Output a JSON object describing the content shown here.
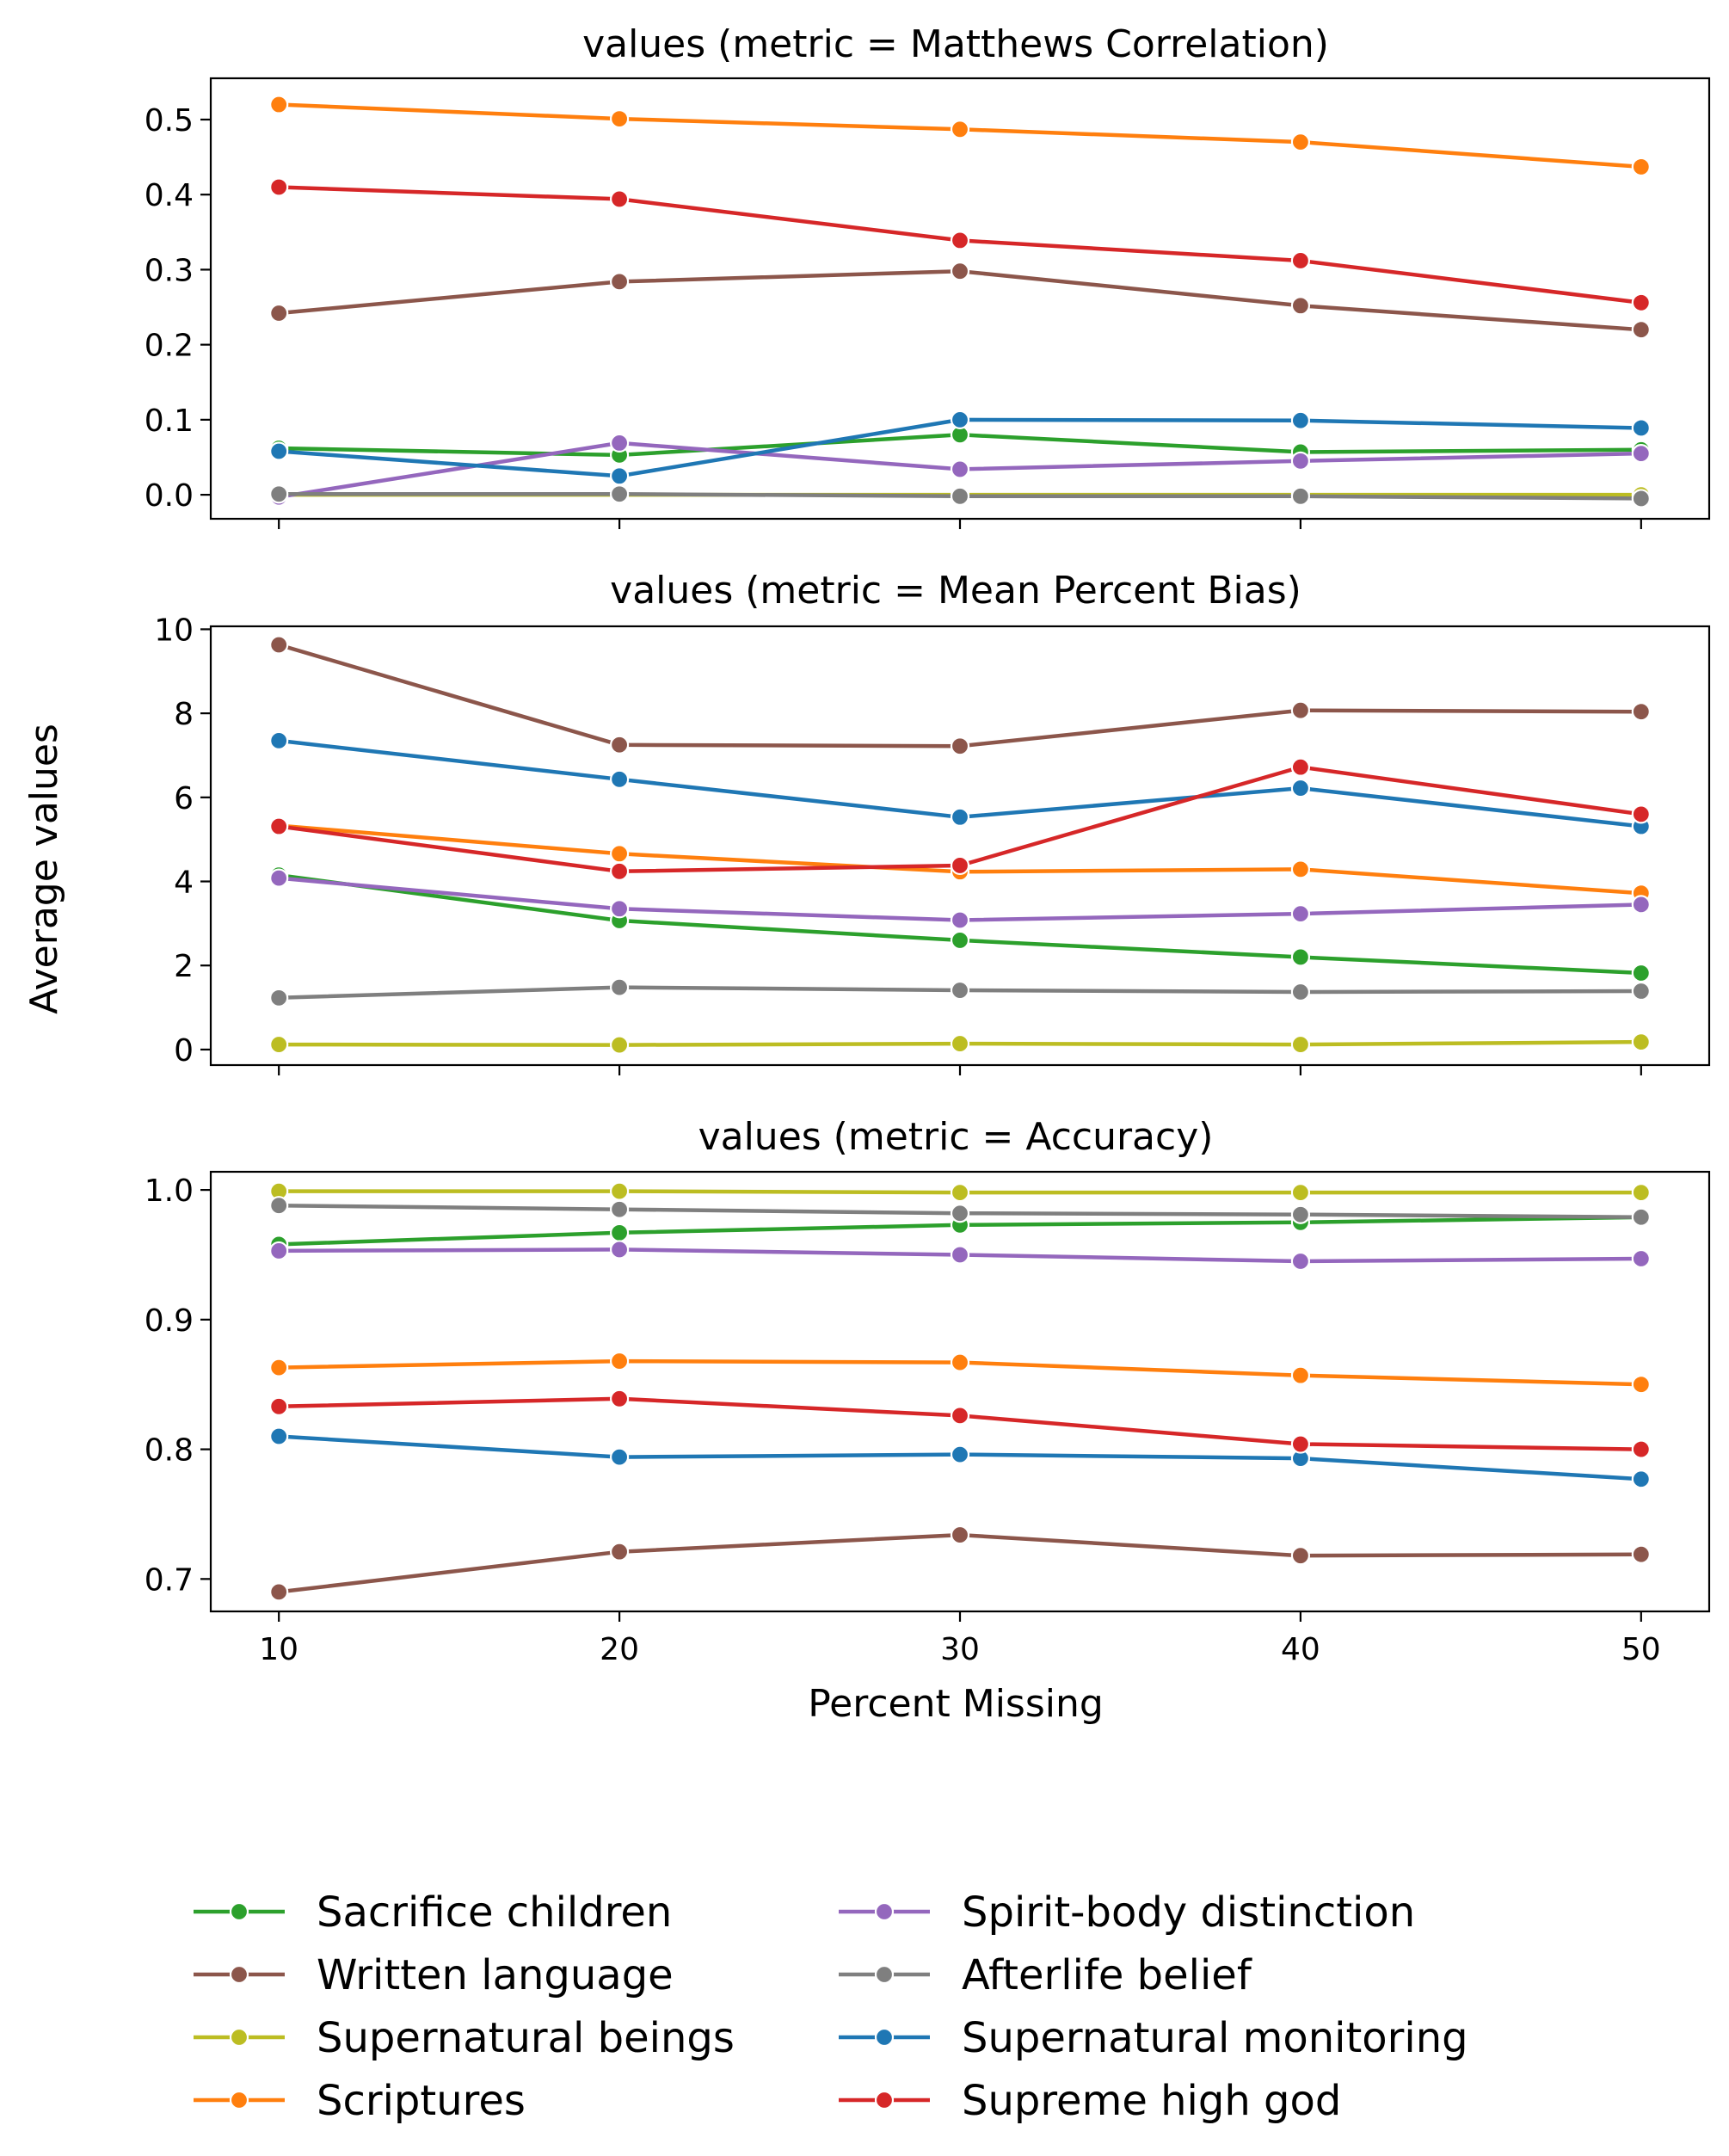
{
  "figure": {
    "ylabel": "Average values",
    "xlabel": "Percent Missing"
  },
  "series_styles": [
    {
      "name": "Sacrifice children",
      "color": "#2ca02c"
    },
    {
      "name": "Written language",
      "color": "#8c564b"
    },
    {
      "name": "Supernatural beings",
      "color": "#bcbd22"
    },
    {
      "name": "Scriptures",
      "color": "#ff7f0e"
    },
    {
      "name": "Spirit-body distinction",
      "color": "#9467bd"
    },
    {
      "name": "Afterlife belief",
      "color": "#7f7f7f"
    },
    {
      "name": "Supernatural monitoring",
      "color": "#1f77b4"
    },
    {
      "name": "Supreme high god",
      "color": "#d62728"
    }
  ],
  "legend": {
    "placement": "bottom",
    "columns": [
      [
        "Sacrifice children",
        "Written language",
        "Supernatural beings",
        "Scriptures"
      ],
      [
        "Spirit-body distinction",
        "Afterlife belief",
        "Supernatural monitoring",
        "Supreme high god"
      ]
    ]
  },
  "chart_data": [
    {
      "type": "line",
      "title": "values (metric = Matthews Correlation)",
      "x": [
        10,
        20,
        30,
        40,
        50
      ],
      "xlim": [
        8,
        52
      ],
      "ylim": [
        -0.032,
        0.555
      ],
      "yticks": [
        0.0,
        0.1,
        0.2,
        0.3,
        0.4,
        0.5
      ],
      "ytick_labels": [
        "0.0",
        "0.1",
        "0.2",
        "0.3",
        "0.4",
        "0.5"
      ],
      "grid": false,
      "series": [
        {
          "name": "Sacrifice children",
          "values": [
            0.062,
            0.053,
            0.08,
            0.057,
            0.06
          ]
        },
        {
          "name": "Written language",
          "values": [
            0.242,
            0.284,
            0.298,
            0.252,
            0.22
          ]
        },
        {
          "name": "Supernatural beings",
          "values": [
            0.0,
            0.0,
            0.0,
            0.0,
            0.0
          ]
        },
        {
          "name": "Scriptures",
          "values": [
            0.52,
            0.501,
            0.487,
            0.47,
            0.437
          ]
        },
        {
          "name": "Spirit-body distinction",
          "values": [
            -0.003,
            0.069,
            0.034,
            0.045,
            0.055
          ]
        },
        {
          "name": "Afterlife belief",
          "values": [
            0.001,
            0.001,
            -0.002,
            -0.002,
            -0.005
          ]
        },
        {
          "name": "Supernatural monitoring",
          "values": [
            0.058,
            0.025,
            0.1,
            0.099,
            0.089
          ]
        },
        {
          "name": "Supreme high god",
          "values": [
            0.41,
            0.394,
            0.339,
            0.312,
            0.256
          ]
        }
      ]
    },
    {
      "type": "line",
      "title": "values (metric = Mean Percent Bias)",
      "x": [
        10,
        20,
        30,
        40,
        50
      ],
      "xlim": [
        8,
        52
      ],
      "ylim": [
        -0.37,
        10.07
      ],
      "yticks": [
        0,
        2,
        4,
        6,
        8,
        10
      ],
      "ytick_labels": [
        "0",
        "2",
        "4",
        "6",
        "8",
        "10"
      ],
      "grid": false,
      "series": [
        {
          "name": "Sacrifice children",
          "values": [
            4.15,
            3.07,
            2.6,
            2.2,
            1.82
          ]
        },
        {
          "name": "Written language",
          "values": [
            9.63,
            7.25,
            7.22,
            8.07,
            8.04
          ]
        },
        {
          "name": "Supernatural beings",
          "values": [
            0.12,
            0.11,
            0.14,
            0.12,
            0.18
          ]
        },
        {
          "name": "Scriptures",
          "values": [
            5.33,
            4.66,
            4.23,
            4.29,
            3.72
          ]
        },
        {
          "name": "Spirit-body distinction",
          "values": [
            4.08,
            3.35,
            3.08,
            3.23,
            3.45
          ]
        },
        {
          "name": "Afterlife belief",
          "values": [
            1.23,
            1.48,
            1.41,
            1.37,
            1.39
          ]
        },
        {
          "name": "Supernatural monitoring",
          "values": [
            7.35,
            6.43,
            5.53,
            6.22,
            5.31
          ]
        },
        {
          "name": "Supreme high god",
          "values": [
            5.31,
            4.24,
            4.38,
            6.72,
            5.6
          ]
        }
      ]
    },
    {
      "type": "line",
      "title": "values (metric = Accuracy)",
      "x": [
        10,
        20,
        30,
        40,
        50
      ],
      "xlim": [
        8,
        52
      ],
      "xticks": [
        10,
        20,
        30,
        40,
        50
      ],
      "xtick_labels": [
        "10",
        "20",
        "30",
        "40",
        "50"
      ],
      "ylim": [
        0.675,
        1.014
      ],
      "yticks": [
        0.7,
        0.8,
        0.9,
        1.0
      ],
      "ytick_labels": [
        "0.7",
        "0.8",
        "0.9",
        "1.0"
      ],
      "grid": false,
      "series": [
        {
          "name": "Sacrifice children",
          "values": [
            0.958,
            0.967,
            0.973,
            0.975,
            0.979
          ]
        },
        {
          "name": "Written language",
          "values": [
            0.69,
            0.721,
            0.734,
            0.718,
            0.719
          ]
        },
        {
          "name": "Supernatural beings",
          "values": [
            0.999,
            0.999,
            0.998,
            0.998,
            0.998
          ]
        },
        {
          "name": "Scriptures",
          "values": [
            0.863,
            0.868,
            0.867,
            0.857,
            0.85
          ]
        },
        {
          "name": "Spirit-body distinction",
          "values": [
            0.953,
            0.954,
            0.95,
            0.945,
            0.947
          ]
        },
        {
          "name": "Afterlife belief",
          "values": [
            0.988,
            0.985,
            0.982,
            0.981,
            0.979
          ]
        },
        {
          "name": "Supernatural monitoring",
          "values": [
            0.81,
            0.794,
            0.796,
            0.793,
            0.777
          ]
        },
        {
          "name": "Supreme high god",
          "values": [
            0.833,
            0.839,
            0.826,
            0.804,
            0.8
          ]
        }
      ]
    }
  ]
}
